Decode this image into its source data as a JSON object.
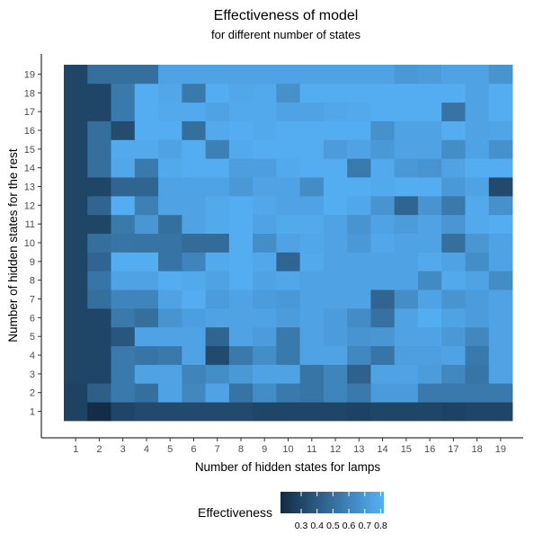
{
  "chart_data": {
    "type": "heatmap",
    "title": "Effectiveness of model",
    "subtitle": "for different number of states",
    "xlabel": "Number of hidden states for lamps",
    "ylabel": "Number of hidden states for the rest",
    "x_categories": [
      "1",
      "2",
      "3",
      "4",
      "5",
      "6",
      "7",
      "8",
      "9",
      "10",
      "11",
      "12",
      "13",
      "14",
      "15",
      "16",
      "17",
      "18",
      "19"
    ],
    "y_categories": [
      "1",
      "2",
      "3",
      "4",
      "5",
      "6",
      "7",
      "8",
      "9",
      "10",
      "11",
      "12",
      "13",
      "14",
      "15",
      "16",
      "17",
      "18",
      "19"
    ],
    "rows_order": "values[i] corresponds to y category i+1 (bottom row first); each row lists x = 1..19",
    "values": [
      [
        0.28,
        0.18,
        0.3,
        0.32,
        0.32,
        0.32,
        0.32,
        0.32,
        0.3,
        0.3,
        0.3,
        0.3,
        0.28,
        0.3,
        0.3,
        0.3,
        0.28,
        0.3,
        0.3
      ],
      [
        0.28,
        0.42,
        0.55,
        0.5,
        0.75,
        0.62,
        0.75,
        0.52,
        0.64,
        0.55,
        0.53,
        0.6,
        0.55,
        0.71,
        0.71,
        0.55,
        0.55,
        0.55,
        0.55
      ],
      [
        0.3,
        0.3,
        0.55,
        0.75,
        0.75,
        0.6,
        0.65,
        0.7,
        0.75,
        0.75,
        0.53,
        0.6,
        0.43,
        0.75,
        0.75,
        0.72,
        0.62,
        0.53,
        0.75
      ],
      [
        0.3,
        0.3,
        0.55,
        0.53,
        0.55,
        0.75,
        0.32,
        0.55,
        0.65,
        0.55,
        0.75,
        0.75,
        0.62,
        0.53,
        0.73,
        0.73,
        0.75,
        0.55,
        0.75
      ],
      [
        0.3,
        0.3,
        0.38,
        0.75,
        0.75,
        0.75,
        0.45,
        0.75,
        0.72,
        0.55,
        0.75,
        0.72,
        0.68,
        0.69,
        0.75,
        0.75,
        0.7,
        0.62,
        0.75
      ],
      [
        0.3,
        0.3,
        0.55,
        0.5,
        0.68,
        0.73,
        0.75,
        0.75,
        0.75,
        0.72,
        0.75,
        0.72,
        0.64,
        0.51,
        0.75,
        0.8,
        0.75,
        0.72,
        0.75
      ],
      [
        0.3,
        0.5,
        0.6,
        0.6,
        0.75,
        0.8,
        0.72,
        0.75,
        0.72,
        0.7,
        0.75,
        0.75,
        0.75,
        0.45,
        0.65,
        0.75,
        0.68,
        0.72,
        0.75
      ],
      [
        0.3,
        0.53,
        0.75,
        0.75,
        0.8,
        0.78,
        0.75,
        0.8,
        0.75,
        0.77,
        0.75,
        0.75,
        0.75,
        0.75,
        0.75,
        0.63,
        0.78,
        0.75,
        0.64
      ],
      [
        0.3,
        0.45,
        0.8,
        0.8,
        0.52,
        0.6,
        0.78,
        0.8,
        0.77,
        0.45,
        0.78,
        0.75,
        0.75,
        0.75,
        0.75,
        0.78,
        0.75,
        0.65,
        0.75
      ],
      [
        0.3,
        0.5,
        0.53,
        0.52,
        0.52,
        0.48,
        0.48,
        0.8,
        0.65,
        0.75,
        0.77,
        0.75,
        0.7,
        0.77,
        0.75,
        0.75,
        0.5,
        0.69,
        0.75
      ],
      [
        0.3,
        0.3,
        0.55,
        0.69,
        0.5,
        0.75,
        0.78,
        0.8,
        0.75,
        0.78,
        0.78,
        0.75,
        0.68,
        0.75,
        0.72,
        0.75,
        0.69,
        0.78,
        0.8
      ],
      [
        0.3,
        0.45,
        0.8,
        0.58,
        0.75,
        0.75,
        0.78,
        0.8,
        0.77,
        0.75,
        0.75,
        0.8,
        0.77,
        0.68,
        0.45,
        0.68,
        0.55,
        0.78,
        0.66
      ],
      [
        0.3,
        0.3,
        0.45,
        0.45,
        0.75,
        0.75,
        0.75,
        0.7,
        0.75,
        0.75,
        0.64,
        0.8,
        0.8,
        0.78,
        0.8,
        0.8,
        0.7,
        0.75,
        0.32
      ],
      [
        0.3,
        0.5,
        0.77,
        0.55,
        0.78,
        0.8,
        0.8,
        0.73,
        0.73,
        0.78,
        0.8,
        0.8,
        0.55,
        0.78,
        0.7,
        0.68,
        0.75,
        0.8,
        0.8
      ],
      [
        0.3,
        0.5,
        0.78,
        0.78,
        0.75,
        0.8,
        0.58,
        0.78,
        0.8,
        0.8,
        0.8,
        0.72,
        0.75,
        0.7,
        0.75,
        0.75,
        0.65,
        0.75,
        0.66
      ],
      [
        0.3,
        0.5,
        0.33,
        0.8,
        0.8,
        0.5,
        0.78,
        0.8,
        0.78,
        0.8,
        0.8,
        0.8,
        0.8,
        0.66,
        0.75,
        0.75,
        0.8,
        0.75,
        0.76
      ],
      [
        0.3,
        0.3,
        0.55,
        0.8,
        0.78,
        0.78,
        0.75,
        0.78,
        0.78,
        0.75,
        0.75,
        0.77,
        0.78,
        0.8,
        0.8,
        0.8,
        0.52,
        0.75,
        0.8
      ],
      [
        0.3,
        0.3,
        0.55,
        0.8,
        0.77,
        0.55,
        0.8,
        0.77,
        0.78,
        0.66,
        0.8,
        0.8,
        0.8,
        0.8,
        0.8,
        0.8,
        0.8,
        0.75,
        0.8
      ],
      [
        0.3,
        0.5,
        0.5,
        0.5,
        0.75,
        0.75,
        0.75,
        0.75,
        0.75,
        0.75,
        0.75,
        0.75,
        0.75,
        0.75,
        0.7,
        0.72,
        0.75,
        0.75,
        0.68
      ]
    ],
    "legend": {
      "title": "Effectiveness",
      "position": "bottom",
      "ticks": [
        "0.3",
        "0.4",
        "0.5",
        "0.6",
        "0.7",
        "0.8"
      ],
      "tick_values": [
        0.3,
        0.4,
        0.5,
        0.6,
        0.7,
        0.8
      ],
      "range": [
        0.17,
        0.82
      ]
    },
    "color_scale": {
      "low": "#132b43",
      "high": "#56b1f7"
    },
    "grid": false
  }
}
